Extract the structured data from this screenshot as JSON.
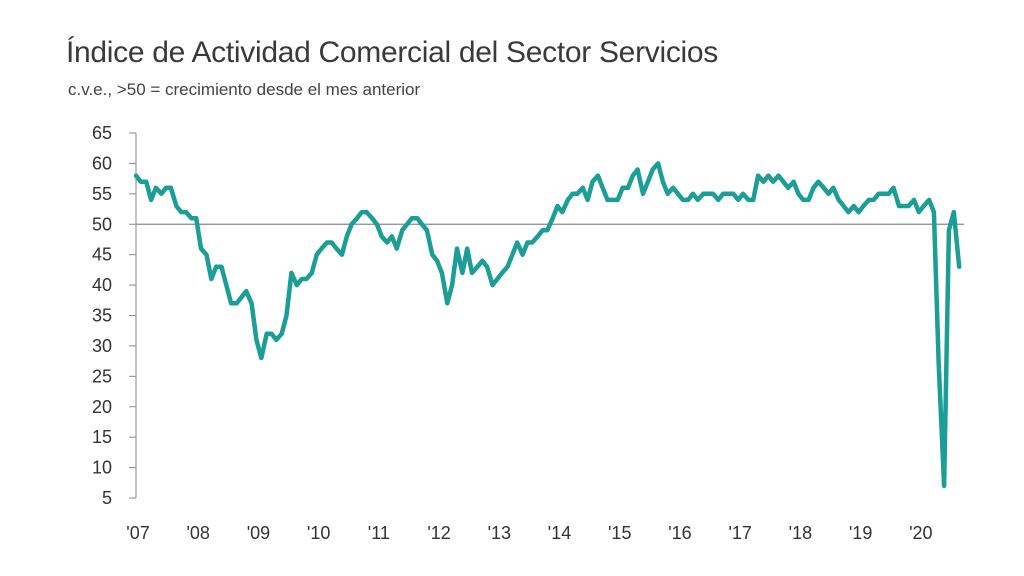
{
  "chart_data": {
    "type": "line",
    "title": "Índice de Actividad Comercial del Sector Servicios",
    "subtitle": "c.v.e., >50 = crecimiento desde el mes anterior",
    "xlabel": "",
    "ylabel": "",
    "ylim": [
      5,
      65
    ],
    "y_ticks": [
      5,
      10,
      15,
      20,
      25,
      30,
      35,
      40,
      45,
      50,
      55,
      60,
      65
    ],
    "x_ticks": [
      "'07",
      "'08",
      "'09",
      "'10",
      "'11",
      "'12",
      "'13",
      "'14",
      "'15",
      "'16",
      "'17",
      "'18",
      "'19",
      "'20"
    ],
    "x_range": [
      2007.0,
      2020.75
    ],
    "reference_line": 50,
    "line_color": "#1a9e96",
    "series": [
      {
        "name": "Índice de Actividad Comercial",
        "x": [
          2007.0,
          2007.08,
          2007.17,
          2007.25,
          2007.33,
          2007.42,
          2007.5,
          2007.58,
          2007.67,
          2007.75,
          2007.83,
          2007.92,
          2008.0,
          2008.08,
          2008.17,
          2008.25,
          2008.33,
          2008.42,
          2008.5,
          2008.58,
          2008.67,
          2008.75,
          2008.83,
          2008.92,
          2009.0,
          2009.08,
          2009.17,
          2009.25,
          2009.33,
          2009.42,
          2009.5,
          2009.58,
          2009.67,
          2009.75,
          2009.83,
          2009.92,
          2010.0,
          2010.08,
          2010.17,
          2010.25,
          2010.33,
          2010.42,
          2010.5,
          2010.58,
          2010.67,
          2010.75,
          2010.83,
          2010.92,
          2011.0,
          2011.08,
          2011.17,
          2011.25,
          2011.33,
          2011.42,
          2011.5,
          2011.58,
          2011.67,
          2011.75,
          2011.83,
          2011.92,
          2012.0,
          2012.08,
          2012.17,
          2012.25,
          2012.33,
          2012.42,
          2012.5,
          2012.58,
          2012.67,
          2012.75,
          2012.83,
          2012.92,
          2013.0,
          2013.08,
          2013.17,
          2013.25,
          2013.33,
          2013.42,
          2013.5,
          2013.58,
          2013.67,
          2013.75,
          2013.83,
          2013.92,
          2014.0,
          2014.08,
          2014.17,
          2014.25,
          2014.33,
          2014.42,
          2014.5,
          2014.58,
          2014.67,
          2014.75,
          2014.83,
          2014.92,
          2015.0,
          2015.08,
          2015.17,
          2015.25,
          2015.33,
          2015.42,
          2015.5,
          2015.58,
          2015.67,
          2015.75,
          2015.83,
          2015.92,
          2016.0,
          2016.08,
          2016.17,
          2016.25,
          2016.33,
          2016.42,
          2016.5,
          2016.58,
          2016.67,
          2016.75,
          2016.83,
          2016.92,
          2017.0,
          2017.08,
          2017.17,
          2017.25,
          2017.33,
          2017.42,
          2017.5,
          2017.58,
          2017.67,
          2017.75,
          2017.83,
          2017.92,
          2018.0,
          2018.08,
          2018.17,
          2018.25,
          2018.33,
          2018.42,
          2018.5,
          2018.58,
          2018.67,
          2018.75,
          2018.83,
          2018.92,
          2019.0,
          2019.08,
          2019.17,
          2019.25,
          2019.33,
          2019.42,
          2019.5,
          2019.58,
          2019.67,
          2019.75,
          2019.83,
          2019.92,
          2020.0,
          2020.08,
          2020.17,
          2020.25,
          2020.33,
          2020.42,
          2020.5,
          2020.58,
          2020.67
        ],
        "values": [
          58,
          57,
          57,
          54,
          56,
          55,
          56,
          56,
          53,
          52,
          52,
          51,
          51,
          46,
          45,
          41,
          43,
          43,
          40,
          37,
          37,
          38,
          39,
          37,
          31,
          28,
          32,
          32,
          31,
          32,
          35,
          42,
          40,
          41,
          41,
          42,
          45,
          46,
          47,
          47,
          46,
          45,
          48,
          50,
          51,
          52,
          52,
          51,
          50,
          48,
          47,
          48,
          46,
          49,
          50,
          51,
          51,
          50,
          49,
          45,
          44,
          42,
          37,
          40,
          46,
          42,
          46,
          42,
          43,
          44,
          43,
          40,
          41,
          42,
          43,
          45,
          47,
          45,
          47,
          47,
          48,
          49,
          49,
          51,
          53,
          52,
          54,
          55,
          55,
          56,
          54,
          57,
          58,
          56,
          54,
          54,
          54,
          56,
          56,
          58,
          59,
          55,
          57,
          59,
          60,
          57,
          55,
          56,
          55,
          54,
          54,
          55,
          54,
          55,
          55,
          55,
          54,
          55,
          55,
          55,
          54,
          55,
          54,
          54,
          58,
          57,
          58,
          57,
          58,
          57,
          56,
          57,
          55,
          54,
          54,
          56,
          57,
          56,
          55,
          56,
          54,
          53,
          52,
          53,
          52,
          53,
          54,
          54,
          55,
          55,
          55,
          56,
          53,
          53,
          53,
          54,
          52,
          53,
          54,
          52,
          27,
          7,
          49,
          52,
          43
        ]
      }
    ]
  }
}
